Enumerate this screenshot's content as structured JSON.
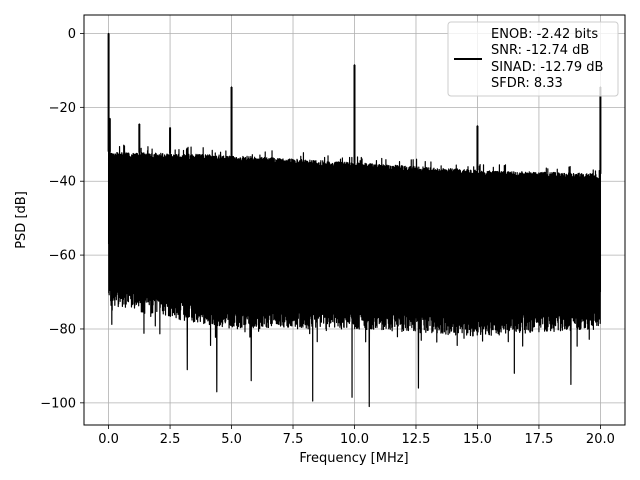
{
  "chart_data": {
    "type": "line",
    "title": "",
    "xlabel": "Frequency [MHz]",
    "ylabel": "PSD [dB]",
    "xlim": [
      -1.0,
      21.0
    ],
    "ylim": [
      -106,
      5
    ],
    "xticks": [
      0.0,
      2.5,
      5.0,
      7.5,
      10.0,
      12.5,
      15.0,
      17.5,
      20.0
    ],
    "xtick_labels": [
      "0.0",
      "2.5",
      "5.0",
      "7.5",
      "10.0",
      "12.5",
      "15.0",
      "17.5",
      "20.0"
    ],
    "yticks": [
      0,
      -20,
      -40,
      -60,
      -80,
      -100
    ],
    "ytick_labels": [
      "0",
      "−20",
      "−40",
      "−60",
      "−80",
      "−100"
    ],
    "grid": true,
    "legend_position": "top-right",
    "series": [
      {
        "color": "#000000",
        "legend_lines": [
          "ENOB: -2.42 bits",
          "SNR: -12.74 dB",
          "SINAD: -12.79 dB",
          "SFDR: 8.33"
        ],
        "noise_floor_top": {
          "x": [
            0.0,
            5.0,
            10.0,
            15.0,
            20.0
          ],
          "y": [
            -32,
            -33,
            -35,
            -37,
            -38
          ]
        },
        "noise_floor_bottom": {
          "x": [
            0.0,
            5.0,
            10.0,
            15.0,
            20.0
          ],
          "y": [
            -74,
            -80,
            -80,
            -82,
            -80
          ]
        },
        "spurs": [
          {
            "x": 0.0,
            "y": 0
          },
          {
            "x": 0.05,
            "y": -23
          },
          {
            "x": 1.25,
            "y": -24.5
          },
          {
            "x": 2.5,
            "y": -25.5
          },
          {
            "x": 5.0,
            "y": -14.5
          },
          {
            "x": 10.0,
            "y": -8.5
          },
          {
            "x": 15.0,
            "y": -25
          },
          {
            "x": 20.0,
            "y": -14.5
          }
        ],
        "dips": [
          {
            "x": 3.2,
            "y": -91
          },
          {
            "x": 4.4,
            "y": -97
          },
          {
            "x": 5.8,
            "y": -94
          },
          {
            "x": 8.3,
            "y": -99.5
          },
          {
            "x": 9.9,
            "y": -98.5
          },
          {
            "x": 10.6,
            "y": -101
          },
          {
            "x": 12.6,
            "y": -96
          },
          {
            "x": 16.5,
            "y": -92
          },
          {
            "x": 18.8,
            "y": -95
          }
        ]
      }
    ]
  }
}
